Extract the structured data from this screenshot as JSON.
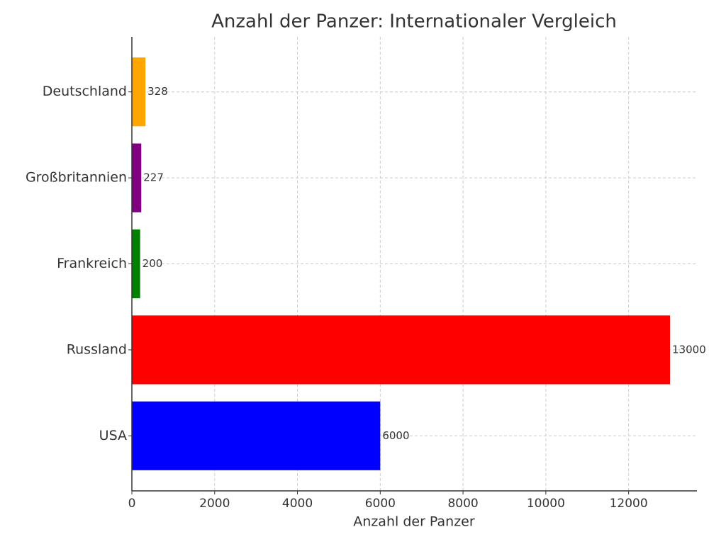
{
  "chart_data": {
    "type": "barh",
    "title": "Anzahl der Panzer: Internationaler Vergleich",
    "x_label": "Anzahl der Panzer",
    "categories": [
      "USA",
      "Russland",
      "Frankreich",
      "Großbritannien",
      "Deutschland"
    ],
    "values": [
      6000,
      13000,
      200,
      227,
      328
    ],
    "colors": [
      "#0000ff",
      "#ff0000",
      "#008000",
      "#800080",
      "#ffa500"
    ],
    "xlim": [
      0,
      13650
    ],
    "xticks": [
      0,
      2000,
      4000,
      6000,
      8000,
      10000,
      12000
    ],
    "grid": true
  }
}
